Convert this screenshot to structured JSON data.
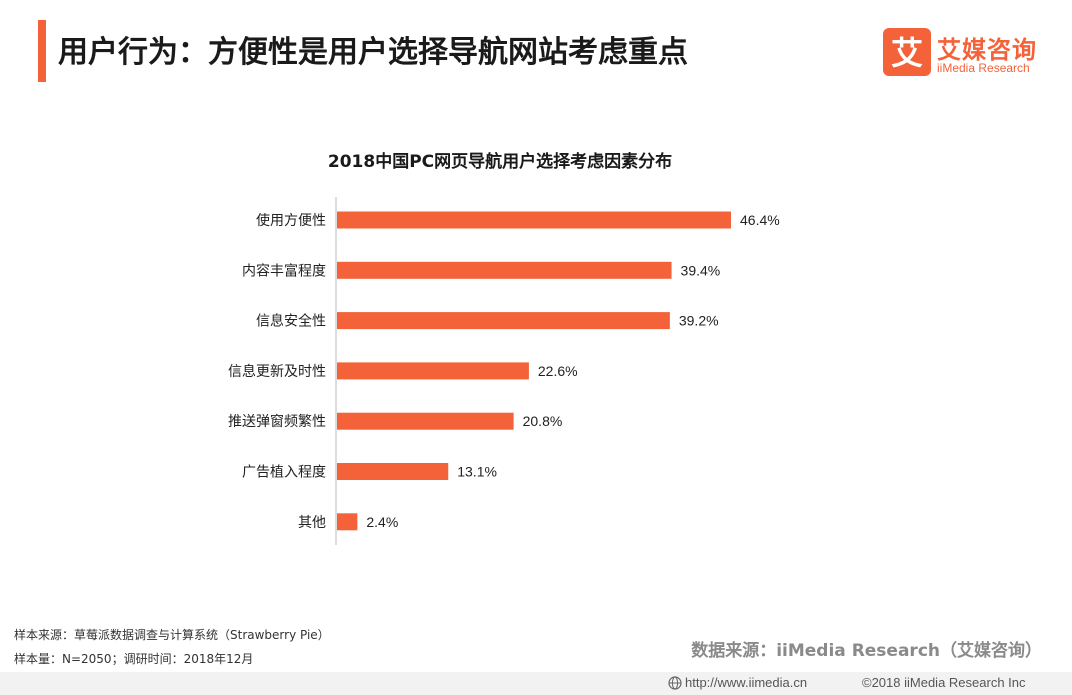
{
  "header": {
    "title": "用户行为：方便性是用户选择导航网站考虑重点",
    "accent_color": "#f4623a"
  },
  "logo": {
    "mark_glyph": "艾",
    "cn": "艾媒咨询",
    "en": "iiMedia Research"
  },
  "chart_data": {
    "type": "bar",
    "orientation": "horizontal",
    "title": "2018中国PC网页导航用户选择考虑因素分布",
    "categories": [
      "使用方便性",
      "内容丰富程度",
      "信息安全性",
      "信息更新及时性",
      "推送弹窗频繁性",
      "广告植入程度",
      "其他"
    ],
    "values": [
      46.4,
      39.4,
      39.2,
      22.6,
      20.8,
      13.1,
      2.4
    ],
    "value_labels": [
      "46.4%",
      "39.4%",
      "39.2%",
      "22.6%",
      "20.8%",
      "13.1%",
      "2.4%"
    ],
    "unit": "%",
    "bar_color": "#f4623a",
    "xlim": [
      0,
      46.4
    ],
    "grid": false,
    "legend": "none"
  },
  "footnotes": {
    "sample_source": "样本来源：草莓派数据调查与计算系统（Strawberry Pie）",
    "sample_size": "样本量：N=2050；调研时间：2018年12月"
  },
  "source": "数据来源：iiMedia Research（艾媒咨询）",
  "footer": {
    "url": "http://www.iimedia.cn",
    "copyright": "©2018  iiMedia Research  Inc"
  },
  "icons": [
    "globe-icon"
  ]
}
